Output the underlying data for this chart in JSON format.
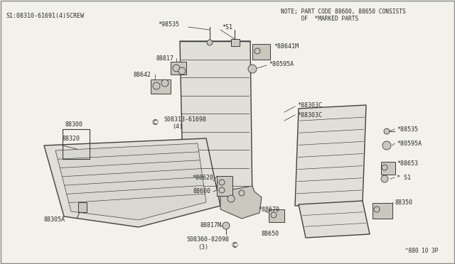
{
  "bg_color": "#f2f2ea",
  "line_color": "#3a3a3a",
  "text_color": "#2a2a2a",
  "seat_fill": "#e0e0d8",
  "seat_edge": "#404040",
  "hw_fill": "#c8c8be",
  "title_left": "S1:08310-61691(4)SCREW",
  "note1": "NOTE; PART CODE 88600, 88650 CONSISTS",
  "note2": "      OF  *MARKED PARTS",
  "footer": "^880 10 3P",
  "font_size": 6.0
}
